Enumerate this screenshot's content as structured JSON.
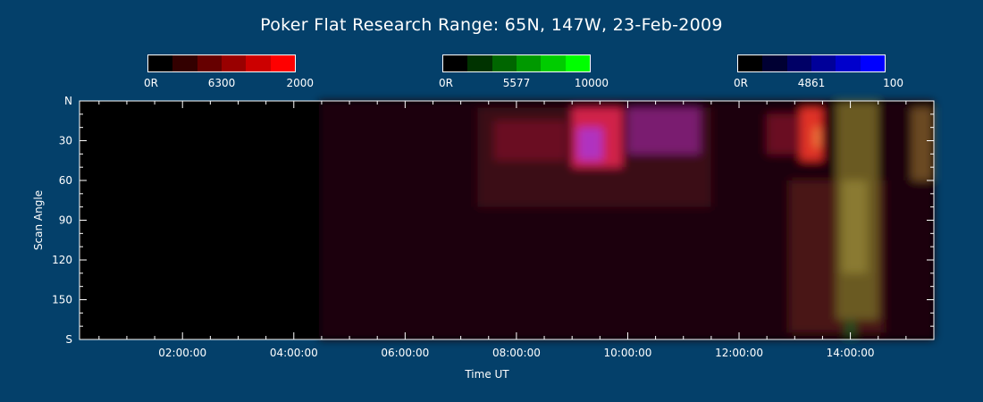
{
  "title": "Poker Flat Research Range: 65N, 147W, 23-Feb-2009",
  "colorbars": [
    {
      "left_label": "0R",
      "mid_label": "6300",
      "right_label": "2000",
      "colors": [
        "#000000",
        "#330000",
        "#660000",
        "#990000",
        "#cc0000",
        "#ff0000"
      ]
    },
    {
      "left_label": "0R",
      "mid_label": "5577",
      "right_label": "10000",
      "colors": [
        "#000000",
        "#003300",
        "#006600",
        "#009900",
        "#00cc00",
        "#00ff00"
      ]
    },
    {
      "left_label": "0R",
      "mid_label": "4861",
      "right_label": "100",
      "colors": [
        "#000000",
        "#000033",
        "#000066",
        "#000099",
        "#0000cc",
        "#0000ff"
      ]
    }
  ],
  "chart_data": {
    "type": "heatmap",
    "xlabel": "Time UT",
    "ylabel": "Scan Angle",
    "xlim_hours": [
      0.15,
      15.5
    ],
    "ylim_deg": [
      0,
      180
    ],
    "x_ticks": [
      {
        "value": 2,
        "label": "02:00:00"
      },
      {
        "value": 4,
        "label": "04:00:00"
      },
      {
        "value": 6,
        "label": "06:00:00"
      },
      {
        "value": 8,
        "label": "08:00:00"
      },
      {
        "value": 10,
        "label": "10:00:00"
      },
      {
        "value": 12,
        "label": "12:00:00"
      },
      {
        "value": 14,
        "label": "14:00:00"
      }
    ],
    "y_ticks": [
      {
        "value": 0,
        "label": "N"
      },
      {
        "value": 30,
        "label": "30"
      },
      {
        "value": 60,
        "label": "60"
      },
      {
        "value": 90,
        "label": "90"
      },
      {
        "value": 120,
        "label": "120"
      },
      {
        "value": 150,
        "label": "150"
      },
      {
        "value": 180,
        "label": "S"
      }
    ],
    "data_start_hour": 4.45,
    "features": [
      {
        "name": "background",
        "t0": 4.45,
        "t1": 15.5,
        "a0": 0,
        "a1": 180,
        "color": "#1a0408"
      },
      {
        "name": "broad-red-glow",
        "t0": 7.3,
        "t1": 11.5,
        "a0": 5,
        "a1": 80,
        "color": "#3a0812"
      },
      {
        "name": "red-arc-a",
        "t0": 7.6,
        "t1": 8.9,
        "a0": 15,
        "a1": 45,
        "color": "#6a1020"
      },
      {
        "name": "red-arc-b",
        "t0": 9.0,
        "t1": 9.9,
        "a0": 5,
        "a1": 50,
        "color": "#d02048"
      },
      {
        "name": "magenta-core",
        "t0": 9.1,
        "t1": 9.55,
        "a0": 20,
        "a1": 45,
        "color": "#b030c0"
      },
      {
        "name": "purple-band",
        "t0": 10.0,
        "t1": 11.3,
        "a0": 5,
        "a1": 40,
        "color": "#7a1a70"
      },
      {
        "name": "red-arc-c",
        "t0": 12.5,
        "t1": 13.1,
        "a0": 10,
        "a1": 40,
        "color": "#6a1024"
      },
      {
        "name": "bright-red-arc",
        "t0": 13.1,
        "t1": 13.5,
        "a0": 5,
        "a1": 45,
        "color": "#e03028"
      },
      {
        "name": "orange-streak",
        "t0": 13.35,
        "t1": 13.45,
        "a0": 20,
        "a1": 35,
        "color": "#f08040"
      },
      {
        "name": "late-red-glow",
        "t0": 12.9,
        "t1": 14.6,
        "a0": 60,
        "a1": 175,
        "color": "#4a1418"
      },
      {
        "name": "olive-column",
        "t0": 13.75,
        "t1": 14.5,
        "a0": 0,
        "a1": 165,
        "color": "#6a5a20"
      },
      {
        "name": "olive-core",
        "t0": 13.85,
        "t1": 14.3,
        "a0": 60,
        "a1": 130,
        "color": "#8a7a30"
      },
      {
        "name": "green-spot",
        "t0": 13.9,
        "t1": 14.1,
        "a0": 165,
        "a1": 178,
        "color": "#204a1a"
      },
      {
        "name": "tan-edge",
        "t0": 15.1,
        "t1": 15.5,
        "a0": 5,
        "a1": 60,
        "color": "#6a4a20"
      }
    ]
  }
}
